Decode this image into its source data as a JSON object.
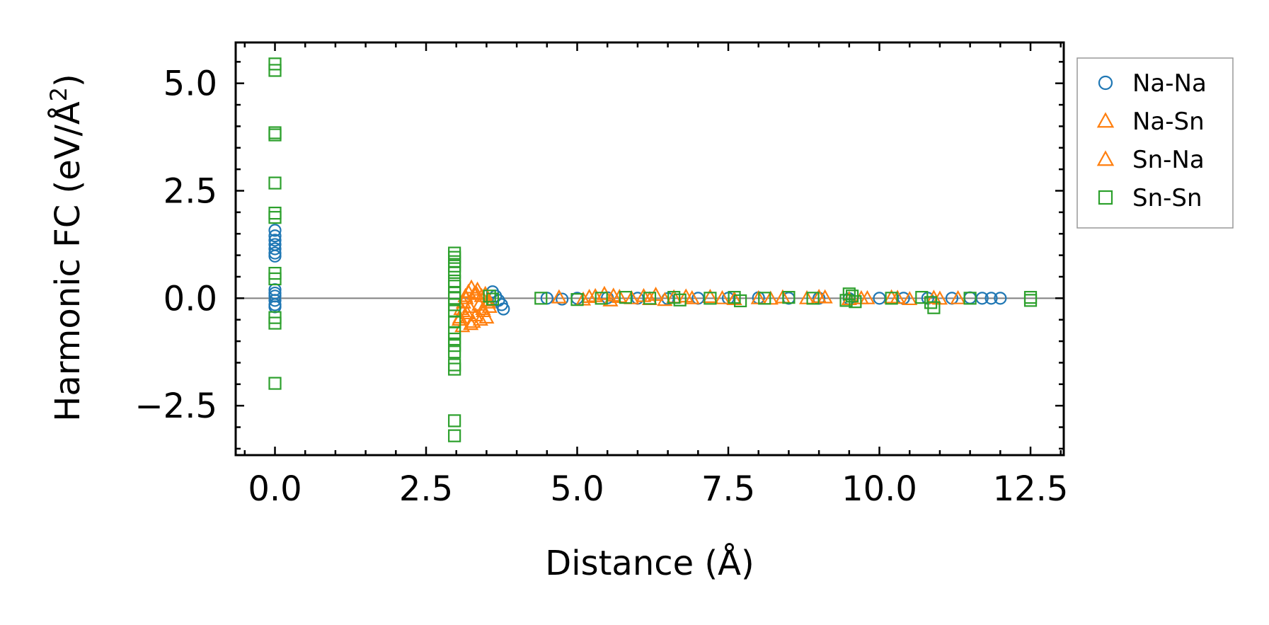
{
  "chart_data": {
    "type": "scatter",
    "xlabel": "Distance (Å)",
    "ylabel_prefix": "Harmonic FC (eV/Å",
    "ylabel_sup": "2",
    "ylabel_suffix": ")",
    "xlim": [
      -0.65,
      13.05
    ],
    "ylim": [
      -3.65,
      5.95
    ],
    "xticks": [
      0.0,
      2.5,
      5.0,
      7.5,
      10.0,
      12.5
    ],
    "xtick_labels": [
      "0.0",
      "2.5",
      "5.0",
      "7.5",
      "10.0",
      "12.5"
    ],
    "yticks": [
      -2.5,
      0.0,
      2.5,
      5.0
    ],
    "ytick_labels": [
      "−2.5",
      "0.0",
      "2.5",
      "5.0"
    ],
    "x_minor_step": 0.5,
    "y_minor_step": 0.5,
    "zero_line": 0.0,
    "grid": false,
    "legend_placement": "outside-right",
    "series": [
      {
        "name": "Na-Na",
        "marker": "circle",
        "color": "#1f77b4",
        "points": [
          [
            0.0,
            1.58
          ],
          [
            0.0,
            1.45
          ],
          [
            0.0,
            1.35
          ],
          [
            0.0,
            1.25
          ],
          [
            0.0,
            1.15
          ],
          [
            0.0,
            1.05
          ],
          [
            0.0,
            0.98
          ],
          [
            0.0,
            0.2
          ],
          [
            0.0,
            0.12
          ],
          [
            0.0,
            0.05
          ],
          [
            0.0,
            -0.05
          ],
          [
            0.0,
            -0.15
          ],
          [
            0.0,
            -0.2
          ],
          [
            3.6,
            0.15
          ],
          [
            3.65,
            0.05
          ],
          [
            3.7,
            -0.05
          ],
          [
            3.75,
            -0.15
          ],
          [
            3.78,
            -0.25
          ],
          [
            4.5,
            0.0
          ],
          [
            4.75,
            -0.02
          ],
          [
            5.0,
            0.0
          ],
          [
            5.5,
            0.01
          ],
          [
            6.0,
            0.0
          ],
          [
            6.5,
            -0.01
          ],
          [
            7.0,
            0.0
          ],
          [
            7.5,
            0.0
          ],
          [
            8.0,
            0.01
          ],
          [
            8.5,
            0.0
          ],
          [
            9.0,
            0.0
          ],
          [
            9.5,
            -0.01
          ],
          [
            10.0,
            0.0
          ],
          [
            10.4,
            0.0
          ],
          [
            10.8,
            0.0
          ],
          [
            11.2,
            0.0
          ],
          [
            11.5,
            0.01
          ],
          [
            11.7,
            0.0
          ],
          [
            11.85,
            0.0
          ],
          [
            12.0,
            0.0
          ]
        ]
      },
      {
        "name": "Na-Sn",
        "marker": "triangle",
        "color": "#ff7f0e",
        "points": [
          [
            3.05,
            -0.5
          ],
          [
            3.08,
            -0.25
          ],
          [
            3.1,
            -0.65
          ],
          [
            3.12,
            -0.1
          ],
          [
            3.15,
            0.05
          ],
          [
            3.18,
            -0.35
          ],
          [
            3.2,
            0.15
          ],
          [
            3.22,
            -0.2
          ],
          [
            3.25,
            0.25
          ],
          [
            3.28,
            -0.55
          ],
          [
            3.3,
            0.1
          ],
          [
            3.32,
            -0.4
          ],
          [
            3.35,
            0.2
          ],
          [
            3.38,
            -0.15
          ],
          [
            3.4,
            -0.5
          ],
          [
            3.42,
            0.05
          ],
          [
            3.45,
            -0.3
          ],
          [
            3.48,
            0.1
          ],
          [
            3.5,
            -0.45
          ],
          [
            3.52,
            -0.05
          ],
          [
            3.55,
            -0.2
          ],
          [
            4.7,
            0.02
          ],
          [
            5.1,
            -0.03
          ],
          [
            5.3,
            0.05
          ],
          [
            5.45,
            0.1
          ],
          [
            5.55,
            -0.05
          ],
          [
            5.7,
            0.03
          ],
          [
            5.9,
            0.0
          ],
          [
            6.1,
            0.05
          ],
          [
            6.3,
            0.08
          ],
          [
            6.45,
            -0.04
          ],
          [
            6.6,
            0.02
          ],
          [
            6.9,
            0.0
          ],
          [
            7.2,
            0.03
          ],
          [
            7.6,
            -0.02
          ],
          [
            8.0,
            0.0
          ],
          [
            8.4,
            0.02
          ],
          [
            8.8,
            0.0
          ],
          [
            9.1,
            0.02
          ],
          [
            9.5,
            -0.02
          ],
          [
            9.8,
            0.0
          ],
          [
            10.2,
            0.02
          ],
          [
            10.5,
            -0.02
          ],
          [
            10.9,
            0.01
          ],
          [
            11.3,
            0.0
          ]
        ]
      },
      {
        "name": "Sn-Na",
        "marker": "triangle",
        "color": "#ff7f0e",
        "points": [
          [
            3.06,
            -0.45
          ],
          [
            3.11,
            -0.3
          ],
          [
            3.16,
            0.0
          ],
          [
            3.24,
            -0.6
          ],
          [
            3.33,
            0.12
          ],
          [
            3.44,
            -0.25
          ],
          [
            3.53,
            -0.1
          ],
          [
            5.2,
            0.03
          ],
          [
            5.6,
            0.06
          ],
          [
            6.2,
            -0.02
          ],
          [
            6.8,
            0.04
          ],
          [
            7.4,
            0.0
          ],
          [
            8.2,
            -0.01
          ],
          [
            9.0,
            0.03
          ],
          [
            9.7,
            0.0
          ],
          [
            10.3,
            0.01
          ],
          [
            11.0,
            -0.01
          ]
        ]
      },
      {
        "name": "Sn-Sn",
        "marker": "square",
        "color": "#2ca02c",
        "points": [
          [
            0.0,
            5.45
          ],
          [
            0.0,
            5.3
          ],
          [
            0.0,
            3.85
          ],
          [
            0.0,
            3.8
          ],
          [
            0.0,
            2.68
          ],
          [
            0.0,
            1.98
          ],
          [
            0.0,
            1.88
          ],
          [
            0.0,
            0.58
          ],
          [
            0.0,
            0.45
          ],
          [
            0.0,
            -0.45
          ],
          [
            0.0,
            -0.58
          ],
          [
            0.0,
            -1.98
          ],
          [
            2.97,
            1.05
          ],
          [
            2.97,
            0.95
          ],
          [
            2.97,
            0.85
          ],
          [
            2.97,
            0.75
          ],
          [
            2.97,
            0.6
          ],
          [
            2.97,
            0.4
          ],
          [
            2.97,
            0.28
          ],
          [
            2.97,
            0.12
          ],
          [
            2.97,
            0.0
          ],
          [
            2.97,
            -0.15
          ],
          [
            2.97,
            -0.3
          ],
          [
            2.97,
            -0.55
          ],
          [
            2.97,
            -0.8
          ],
          [
            2.97,
            -0.95
          ],
          [
            2.97,
            -1.1
          ],
          [
            2.97,
            -1.25
          ],
          [
            2.97,
            -1.55
          ],
          [
            2.97,
            -1.65
          ],
          [
            2.97,
            -2.85
          ],
          [
            2.97,
            -3.2
          ],
          [
            3.55,
            0.05
          ],
          [
            3.6,
            -0.02
          ],
          [
            4.4,
            0.0
          ],
          [
            5.0,
            -0.03
          ],
          [
            5.4,
            0.0
          ],
          [
            5.8,
            0.02
          ],
          [
            6.2,
            0.0
          ],
          [
            6.6,
            0.02
          ],
          [
            6.7,
            -0.04
          ],
          [
            7.2,
            0.0
          ],
          [
            7.6,
            0.02
          ],
          [
            7.7,
            -0.06
          ],
          [
            8.1,
            0.0
          ],
          [
            8.5,
            0.02
          ],
          [
            8.9,
            0.0
          ],
          [
            9.45,
            -0.05
          ],
          [
            9.5,
            0.1
          ],
          [
            9.55,
            0.05
          ],
          [
            9.6,
            -0.08
          ],
          [
            10.2,
            0.0
          ],
          [
            10.7,
            0.02
          ],
          [
            10.85,
            -0.1
          ],
          [
            10.9,
            -0.22
          ],
          [
            11.5,
            0.0
          ],
          [
            12.5,
            0.02
          ],
          [
            12.5,
            -0.05
          ]
        ]
      }
    ]
  }
}
